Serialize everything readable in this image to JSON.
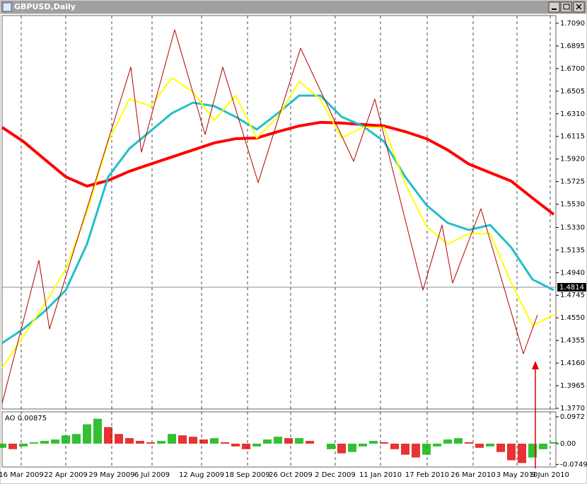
{
  "window": {
    "title": "GBPUSD,Daily"
  },
  "chart_data": [
    {
      "type": "line",
      "xlim": [
        0,
        783
      ],
      "xticks": [
        {
          "value": 27,
          "label": "16 Mar 2009"
        },
        {
          "value": 90,
          "label": "22 Apr 2009"
        },
        {
          "value": 155,
          "label": "29 May 2009"
        },
        {
          "value": 212,
          "label": "6 Jul 2009"
        },
        {
          "value": 282,
          "label": "12 Aug 2009"
        },
        {
          "value": 347,
          "label": "18 Sep 2009"
        },
        {
          "value": 408,
          "label": "26 Oct 2009"
        },
        {
          "value": 471,
          "label": "2 Dec 2009"
        },
        {
          "value": 535,
          "label": "11 Jan 2010"
        },
        {
          "value": 601,
          "label": "17 Feb 2010"
        },
        {
          "value": 666,
          "label": "26 Mar 2010"
        },
        {
          "value": 728,
          "label": "3 May 2010"
        },
        {
          "value": 775,
          "label": "9 Jun 2010"
        }
      ],
      "ylim": [
        1.3764,
        1.7157
      ],
      "yticks": [
        {
          "value": 1.709,
          "label": "1.7090"
        },
        {
          "value": 1.6895,
          "label": "1.6895"
        },
        {
          "value": 1.67,
          "label": "1.6700"
        },
        {
          "value": 1.6505,
          "label": "1.6505"
        },
        {
          "value": 1.631,
          "label": "1.6310"
        },
        {
          "value": 1.6115,
          "label": "1.6115"
        },
        {
          "value": 1.592,
          "label": "1.5920"
        },
        {
          "value": 1.5725,
          "label": "1.5725"
        },
        {
          "value": 1.553,
          "label": "1.5530"
        },
        {
          "value": 1.533,
          "label": "1.5330"
        },
        {
          "value": 1.5135,
          "label": "1.5135"
        },
        {
          "value": 1.494,
          "label": "1.4940"
        },
        {
          "value": 1.4745,
          "label": "1.4745"
        },
        {
          "value": 1.455,
          "label": "1.4550"
        },
        {
          "value": 1.4355,
          "label": "1.4355"
        },
        {
          "value": 1.416,
          "label": "1.4160"
        },
        {
          "value": 1.3965,
          "label": "1.3965"
        },
        {
          "value": 1.377,
          "label": "1.3770"
        }
      ],
      "current_price": {
        "value": 1.4814,
        "label": "1.4814"
      },
      "series": [
        {
          "color": "#ff0000",
          "width": 4,
          "x": [
            0,
            30,
            60,
            90,
            120,
            150,
            180,
            210,
            240,
            270,
            300,
            330,
            360,
            390,
            420,
            450,
            480,
            510,
            540,
            570,
            600,
            630,
            660,
            690,
            720,
            750,
            780
          ],
          "values": [
            1.6193,
            1.6071,
            1.5918,
            1.5766,
            1.5686,
            1.5735,
            1.5814,
            1.5876,
            1.5937,
            1.5998,
            1.6059,
            1.6095,
            1.6101,
            1.6156,
            1.6205,
            1.6236,
            1.623,
            1.6217,
            1.6205,
            1.6156,
            1.6095,
            1.5998,
            1.5876,
            1.5802,
            1.5729,
            1.5583,
            1.5442
          ]
        },
        {
          "color": "#20c0c8",
          "width": 3,
          "x": [
            0,
            30,
            60,
            90,
            120,
            150,
            180,
            210,
            240,
            270,
            300,
            330,
            360,
            390,
            420,
            450,
            480,
            510,
            540,
            570,
            600,
            630,
            660,
            690,
            720,
            750,
            780
          ],
          "values": [
            1.4332,
            1.4454,
            1.4606,
            1.4789,
            1.5186,
            1.5766,
            1.601,
            1.6162,
            1.6315,
            1.6406,
            1.6376,
            1.6284,
            1.6175,
            1.6315,
            1.6467,
            1.6467,
            1.6284,
            1.6205,
            1.6071,
            1.5766,
            1.5522,
            1.5369,
            1.5308,
            1.5351,
            1.5156,
            1.4881,
            1.4789
          ]
        },
        {
          "color": "#ffff00",
          "width": 2,
          "x": [
            0,
            30,
            60,
            90,
            120,
            150,
            180,
            210,
            240,
            270,
            300,
            330,
            360,
            390,
            420,
            450,
            480,
            510,
            540,
            570,
            600,
            630,
            660,
            690,
            720,
            750,
            780
          ],
          "values": [
            1.4118,
            1.4393,
            1.4667,
            1.4972,
            1.5461,
            1.6071,
            1.6437,
            1.6376,
            1.662,
            1.6498,
            1.6254,
            1.6467,
            1.6101,
            1.6284,
            1.6589,
            1.6437,
            1.6101,
            1.6193,
            1.6193,
            1.5705,
            1.5338,
            1.5186,
            1.5277,
            1.5277,
            1.485,
            1.4484,
            1.4576
          ]
        },
        {
          "color": "#b00000",
          "width": 1,
          "x": [
            0,
            52,
            67,
            182,
            197,
            244,
            287,
            312,
            362,
            422,
            497,
            527,
            595,
            622,
            637,
            677,
            737,
            757
          ],
          "values": [
            1.3813,
            1.5046,
            1.4454,
            1.6712,
            1.5979,
            1.7035,
            1.6132,
            1.6712,
            1.5717,
            1.6876,
            1.59,
            1.6437,
            1.4789,
            1.5351,
            1.485,
            1.5491,
            1.424,
            1.4576
          ]
        }
      ]
    },
    {
      "type": "bar",
      "title": "AO 0.00875",
      "xlim": [
        0,
        783
      ],
      "ylim": [
        -0.0844,
        0.115
      ],
      "yticks": [
        {
          "value": 0.0972,
          "label": "0.0972"
        },
        {
          "value": 0,
          "label": "0.00"
        },
        {
          "value": -0.07494,
          "label": "-0.07494"
        }
      ],
      "up_color": "#00b000",
      "down_color": "#e00000",
      "x": [
        0,
        15,
        30,
        45,
        60,
        75,
        90,
        105,
        120,
        135,
        150,
        165,
        180,
        195,
        210,
        225,
        240,
        255,
        270,
        285,
        300,
        315,
        330,
        345,
        360,
        375,
        390,
        405,
        420,
        435,
        450,
        465,
        480,
        495,
        510,
        525,
        540,
        555,
        570,
        585,
        600,
        615,
        630,
        645,
        660,
        675,
        690,
        705,
        720,
        735,
        750,
        765,
        780
      ],
      "values": [
        -0.015,
        -0.02,
        -0.01,
        0.005,
        0.01,
        0.015,
        0.03,
        0.035,
        0.07,
        0.09,
        0.06,
        0.035,
        0.02,
        0.01,
        0.005,
        0.01,
        0.035,
        0.03,
        0.025,
        0.015,
        0.02,
        0.005,
        -0.01,
        -0.02,
        -0.01,
        0.015,
        0.025,
        0.02,
        0.02,
        0.01,
        null,
        -0.02,
        -0.035,
        -0.03,
        -0.01,
        0.01,
        0.005,
        -0.02,
        -0.04,
        -0.05,
        -0.04,
        -0.01,
        0.015,
        0.02,
        0.005,
        -0.015,
        -0.01,
        -0.03,
        -0.06,
        -0.07,
        -0.05,
        -0.02,
        0.005
      ]
    }
  ]
}
